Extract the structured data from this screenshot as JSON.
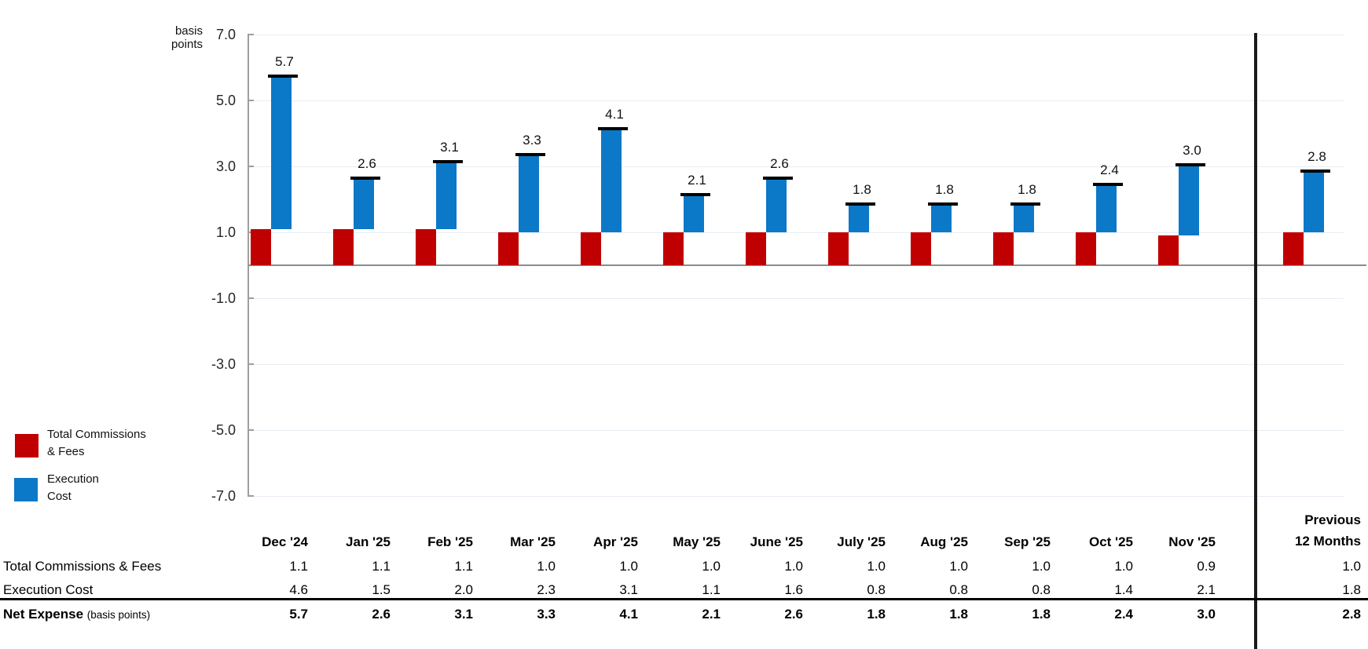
{
  "colors": {
    "bar_red": "#C00000",
    "bar_blue": "#0C78C8",
    "gridline": "#E7EDF4",
    "axis_gray": "#9E9E9E",
    "baseline_gray": "#8C8C8C",
    "separator_black": "#1A1A1A"
  },
  "y_axis": {
    "unit_label_line1": "basis",
    "unit_label_line2": "points",
    "tick_labels": [
      "7.0",
      "5.0",
      "3.0",
      "1.0",
      "-1.0",
      "-3.0",
      "-5.0",
      "-7.0"
    ]
  },
  "legend": {
    "commissions_line1": "Total Commissions",
    "commissions_line2": "& Fees",
    "execution_line1": "Execution",
    "execution_line2": "Cost"
  },
  "chart_data": {
    "type": "bar",
    "subtype": "stacked-offset-waterfall",
    "title": "",
    "ylabel": "basis points",
    "ylim": [
      -7.0,
      7.0
    ],
    "grid": true,
    "legend_position": "bottom-left",
    "categories": [
      "Dec '24",
      "Jan '25",
      "Feb '25",
      "Mar '25",
      "Apr '25",
      "May '25",
      "June '25",
      "July '25",
      "Aug '25",
      "Sep '25",
      "Oct '25",
      "Nov '25"
    ],
    "extra_category": "Previous 12 Months",
    "series": [
      {
        "name": "Total Commissions & Fees",
        "color": "#C00000",
        "values": [
          1.1,
          1.1,
          1.1,
          1.0,
          1.0,
          1.0,
          1.0,
          1.0,
          1.0,
          1.0,
          1.0,
          0.9
        ],
        "previous_12_months": 1.0
      },
      {
        "name": "Execution Cost",
        "color": "#0C78C8",
        "values": [
          4.6,
          1.5,
          2.0,
          2.3,
          3.1,
          1.1,
          1.6,
          0.8,
          0.8,
          0.8,
          1.4,
          2.1
        ],
        "previous_12_months": 1.8
      }
    ],
    "totals": {
      "name": "Net Expense",
      "values": [
        5.7,
        2.6,
        3.1,
        3.3,
        4.1,
        2.1,
        2.6,
        1.8,
        1.8,
        1.8,
        2.4,
        3.0
      ],
      "previous_12_months": 2.8
    },
    "bar_value_labels": [
      "5.7",
      "2.6",
      "3.1",
      "3.3",
      "4.1",
      "2.1",
      "2.6",
      "1.8",
      "1.8",
      "1.8",
      "2.4",
      "3.0",
      "2.8"
    ]
  },
  "table": {
    "previous_header_line1": "Previous",
    "previous_header_line2": "12 Months",
    "row1_label": "Total Commissions & Fees",
    "row2_label": "Execution Cost",
    "net_row_label": "Net Expense",
    "net_row_label_suffix": "(basis points)"
  }
}
